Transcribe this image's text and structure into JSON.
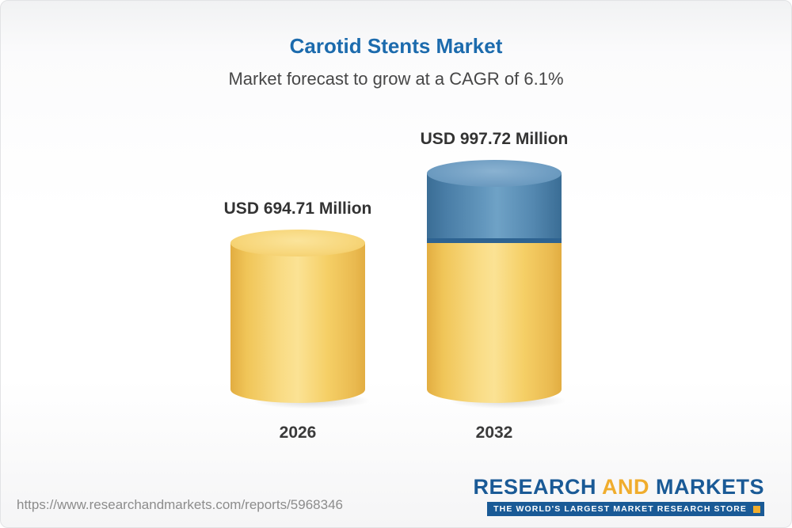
{
  "page": {
    "title": "Carotid Stents Market",
    "subtitle": "Market forecast to grow at a CAGR of 6.1%"
  },
  "chart_data": {
    "type": "bar",
    "categories": [
      "2026",
      "2032"
    ],
    "values": [
      694.71,
      997.72
    ],
    "value_labels": [
      "USD 694.71 Million",
      "USD 997.72 Million"
    ],
    "title": "Carotid Stents Market",
    "subtitle": "Market forecast to grow at a CAGR of 6.1%",
    "unit": "USD Million",
    "cagr_percent": 6.1,
    "ylim": [
      0,
      997.72
    ],
    "grid": false,
    "legend_position": "none",
    "bar_style": "3d-cylinder",
    "growth_segment_note": "2032 bar shows blue segment on top representing growth above the 2026 value"
  },
  "bars": [
    {
      "year": "2026",
      "label": "USD 694.71 Million"
    },
    {
      "year": "2032",
      "label": "USD 997.72 Million"
    }
  ],
  "footer": {
    "url": "https://www.researchandmarkets.com/reports/5968346",
    "logo": {
      "word_research": "RESEARCH",
      "word_and": "AND",
      "word_markets": "MARKETS",
      "tagline": "THE WORLD'S LARGEST MARKET RESEARCH STORE"
    }
  },
  "colors": {
    "title_blue": "#1c6bad",
    "text_dark": "#333333",
    "bar_yellow": "#f5cf66",
    "bar_blue": "#6397bd",
    "bar_blue_band": "#2e6391",
    "logo_blue": "#1a5a96",
    "logo_gold": "#f0ad2d",
    "url_gray": "#8c8c8c"
  }
}
